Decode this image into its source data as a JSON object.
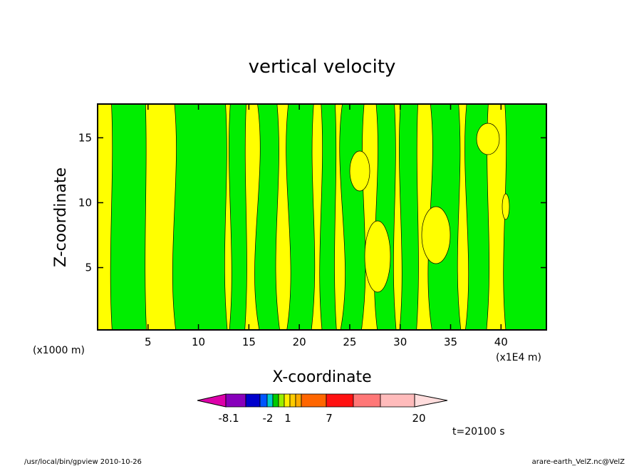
{
  "chart_data": {
    "type": "heatmap",
    "title": "vertical velocity",
    "xlabel": "X-coordinate",
    "ylabel": "Z-coordinate",
    "x_unit_left": "(x1000 m)",
    "x_unit_right": "(x1E4 m)",
    "x_ticks": [
      5,
      10,
      15,
      20,
      25,
      30,
      35,
      40
    ],
    "y_ticks": [
      5,
      10,
      15
    ],
    "xlim": [
      0,
      44.5
    ],
    "ylim": [
      0.2,
      17.6
    ],
    "colorbar": {
      "labels": [
        "-8.1",
        "-2",
        "1",
        "7",
        "20"
      ],
      "colors": [
        "#dd00aa",
        "#8800bb",
        "#0000cc",
        "#0055ff",
        "#00cccc",
        "#00cc00",
        "#99ee00",
        "#ffee00",
        "#ffcc00",
        "#ffaa00",
        "#ff6600",
        "#ff1111",
        "#ff7777",
        "#ffbbbb",
        "#ffdddd"
      ],
      "extend": "both"
    },
    "fill_colors": {
      "positive": "#ffff00",
      "negative": "#00ee00"
    }
  },
  "time_label": "t=20100 s",
  "footer": {
    "left": "/usr/local/bin/gpview   2010-10-26",
    "right": "arare-earth_VelZ.nc@VelZ"
  }
}
